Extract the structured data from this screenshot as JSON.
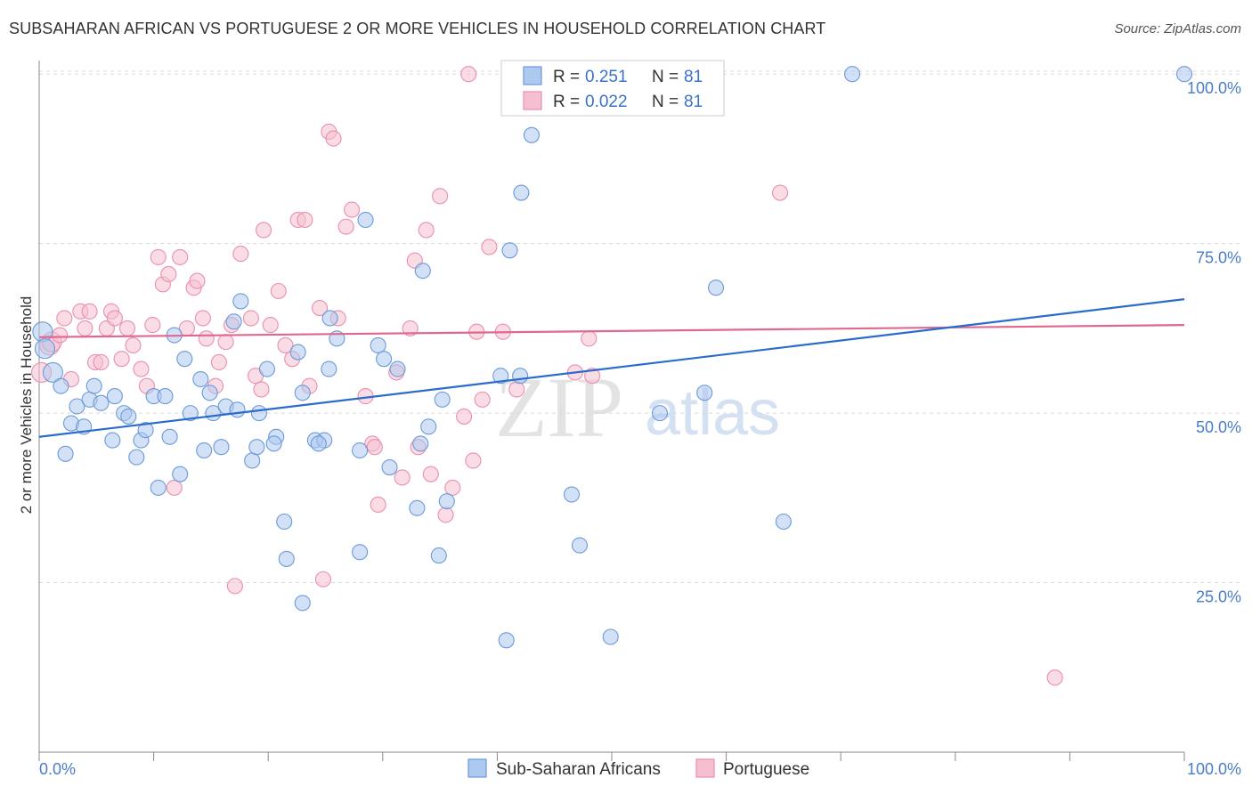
{
  "title": "SUBSAHARAN AFRICAN VS PORTUGUESE 2 OR MORE VEHICLES IN HOUSEHOLD CORRELATION CHART",
  "source": "Source: ZipAtlas.com",
  "watermark": {
    "zip": "ZIP",
    "atlas": "atlas"
  },
  "colors": {
    "blue_fill": "#aec9ef",
    "blue_stroke": "#6b9ad8",
    "blue_line": "#2a6ccc",
    "pink_fill": "#f6bfd0",
    "pink_stroke": "#e98fae",
    "pink_line": "#e0688f",
    "tick_text": "#4a7cc9",
    "grid": "#d9d9d9"
  },
  "legend": {
    "rows": [
      {
        "r_label": "R =",
        "r_value": "0.251",
        "n_label": "N =",
        "n_value": "81"
      },
      {
        "r_label": "R =",
        "r_value": "0.022",
        "n_label": "N =",
        "n_value": "81"
      }
    ]
  },
  "chart_data": {
    "type": "scatter",
    "title": "SUBSAHARAN AFRICAN VS PORTUGUESE 2 OR MORE VEHICLES IN HOUSEHOLD CORRELATION CHART",
    "xlabel": "",
    "ylabel": "2 or more Vehicles in Household",
    "xlim": [
      0,
      100
    ],
    "ylim": [
      0,
      102
    ],
    "x_tick_labels": [
      "0.0%",
      "100.0%"
    ],
    "y_ticks": [
      25,
      50,
      75,
      100
    ],
    "y_tick_labels": [
      "25.0%",
      "50.0%",
      "75.0%",
      "100.0%"
    ],
    "grid": true,
    "legend_position": "top-center",
    "series": [
      {
        "name": "Sub-Saharan Africans",
        "color": "#aec9ef",
        "trend": {
          "x": [
            0,
            100
          ],
          "y": [
            46.5,
            66.8
          ]
        },
        "points": [
          [
            0.3,
            62.0
          ],
          [
            0.5,
            59.5
          ],
          [
            1.2,
            56.0
          ],
          [
            1.9,
            54.0
          ],
          [
            2.3,
            44.0
          ],
          [
            2.8,
            48.5
          ],
          [
            3.3,
            51.0
          ],
          [
            3.9,
            48.0
          ],
          [
            4.4,
            52.0
          ],
          [
            4.8,
            54.0
          ],
          [
            5.4,
            51.5
          ],
          [
            6.4,
            46.0
          ],
          [
            6.6,
            52.5
          ],
          [
            7.4,
            50.0
          ],
          [
            7.8,
            49.5
          ],
          [
            8.5,
            43.5
          ],
          [
            8.9,
            46.0
          ],
          [
            9.3,
            47.5
          ],
          [
            10.0,
            52.5
          ],
          [
            10.4,
            39.0
          ],
          [
            11.0,
            52.5
          ],
          [
            11.4,
            46.5
          ],
          [
            11.8,
            61.5
          ],
          [
            12.3,
            41.0
          ],
          [
            12.7,
            58.0
          ],
          [
            13.2,
            50.0
          ],
          [
            14.1,
            55.0
          ],
          [
            14.4,
            44.5
          ],
          [
            14.9,
            53.0
          ],
          [
            15.2,
            50.0
          ],
          [
            15.9,
            45.0
          ],
          [
            16.3,
            51.0
          ],
          [
            17.3,
            50.5
          ],
          [
            17.0,
            63.5
          ],
          [
            17.6,
            66.5
          ],
          [
            18.6,
            43.0
          ],
          [
            19.0,
            45.0
          ],
          [
            19.2,
            50.0
          ],
          [
            19.9,
            56.5
          ],
          [
            20.7,
            46.5
          ],
          [
            20.5,
            45.5
          ],
          [
            21.4,
            34.0
          ],
          [
            21.6,
            28.5
          ],
          [
            22.6,
            59.0
          ],
          [
            23.0,
            53.0
          ],
          [
            23.0,
            22.0
          ],
          [
            24.1,
            46.0
          ],
          [
            24.9,
            46.0
          ],
          [
            24.4,
            45.5
          ],
          [
            25.3,
            56.5
          ],
          [
            25.4,
            64.0
          ],
          [
            26.0,
            61.0
          ],
          [
            28.0,
            44.5
          ],
          [
            28.0,
            29.5
          ],
          [
            28.5,
            78.5
          ],
          [
            29.6,
            60.0
          ],
          [
            30.1,
            58.0
          ],
          [
            30.6,
            42.0
          ],
          [
            31.3,
            56.5
          ],
          [
            33.0,
            36.0
          ],
          [
            33.3,
            45.5
          ],
          [
            33.5,
            71.0
          ],
          [
            34.0,
            48.0
          ],
          [
            34.9,
            29.0
          ],
          [
            35.2,
            52.0
          ],
          [
            35.6,
            37.0
          ],
          [
            40.3,
            55.5
          ],
          [
            40.8,
            16.5
          ],
          [
            41.1,
            74.0
          ],
          [
            42.1,
            82.5
          ],
          [
            43.0,
            91.0
          ],
          [
            46.5,
            38.0
          ],
          [
            47.2,
            30.5
          ],
          [
            49.9,
            17.0
          ],
          [
            54.2,
            50.0
          ],
          [
            58.1,
            53.0
          ],
          [
            59.1,
            68.5
          ],
          [
            65.0,
            34.0
          ],
          [
            71.0,
            100.0
          ],
          [
            100.0,
            100.0
          ],
          [
            42.0,
            55.5
          ]
        ]
      },
      {
        "name": "Portuguese",
        "color": "#f6bfd0",
        "trend": {
          "x": [
            0,
            100
          ],
          "y": [
            61.2,
            63.0
          ]
        },
        "points": [
          [
            0.2,
            56.0
          ],
          [
            0.9,
            60.0
          ],
          [
            1.1,
            60.5
          ],
          [
            1.8,
            61.5
          ],
          [
            2.2,
            64.0
          ],
          [
            2.8,
            55.0
          ],
          [
            3.6,
            65.0
          ],
          [
            4.0,
            62.5
          ],
          [
            4.4,
            65.0
          ],
          [
            4.9,
            57.5
          ],
          [
            5.4,
            57.5
          ],
          [
            5.9,
            62.5
          ],
          [
            6.3,
            65.0
          ],
          [
            6.6,
            64.0
          ],
          [
            7.2,
            58.0
          ],
          [
            7.7,
            62.5
          ],
          [
            8.2,
            60.0
          ],
          [
            8.9,
            56.5
          ],
          [
            9.4,
            54.0
          ],
          [
            9.9,
            63.0
          ],
          [
            10.4,
            73.0
          ],
          [
            10.8,
            69.0
          ],
          [
            11.3,
            70.5
          ],
          [
            11.8,
            39.0
          ],
          [
            12.3,
            73.0
          ],
          [
            12.9,
            62.5
          ],
          [
            13.5,
            68.5
          ],
          [
            13.8,
            69.5
          ],
          [
            14.3,
            64.0
          ],
          [
            14.6,
            61.0
          ],
          [
            15.4,
            54.0
          ],
          [
            15.7,
            57.5
          ],
          [
            16.3,
            60.5
          ],
          [
            16.8,
            63.0
          ],
          [
            17.1,
            24.5
          ],
          [
            17.6,
            73.5
          ],
          [
            18.5,
            64.0
          ],
          [
            18.9,
            55.5
          ],
          [
            19.4,
            53.5
          ],
          [
            19.6,
            77.0
          ],
          [
            20.2,
            63.0
          ],
          [
            20.9,
            68.0
          ],
          [
            21.5,
            60.0
          ],
          [
            22.1,
            58.0
          ],
          [
            22.6,
            78.5
          ],
          [
            23.2,
            78.5
          ],
          [
            23.6,
            54.0
          ],
          [
            24.5,
            65.5
          ],
          [
            24.8,
            25.5
          ],
          [
            25.3,
            91.5
          ],
          [
            25.7,
            90.5
          ],
          [
            26.1,
            64.0
          ],
          [
            26.8,
            77.5
          ],
          [
            27.3,
            80.0
          ],
          [
            28.5,
            52.5
          ],
          [
            29.1,
            45.5
          ],
          [
            29.3,
            45.0
          ],
          [
            29.6,
            36.5
          ],
          [
            31.2,
            56.0
          ],
          [
            31.7,
            40.5
          ],
          [
            32.4,
            62.5
          ],
          [
            32.8,
            72.5
          ],
          [
            33.1,
            45.0
          ],
          [
            33.8,
            77.0
          ],
          [
            34.2,
            41.0
          ],
          [
            35.0,
            82.0
          ],
          [
            35.5,
            35.0
          ],
          [
            36.1,
            39.0
          ],
          [
            37.1,
            49.5
          ],
          [
            37.9,
            43.0
          ],
          [
            38.2,
            62.0
          ],
          [
            38.7,
            52.0
          ],
          [
            39.3,
            74.5
          ],
          [
            40.5,
            62.0
          ],
          [
            41.7,
            53.5
          ],
          [
            46.8,
            56.0
          ],
          [
            48.3,
            55.5
          ],
          [
            48.0,
            61.0
          ],
          [
            64.7,
            82.5
          ],
          [
            88.7,
            11.0
          ],
          [
            37.5,
            100.0
          ]
        ]
      }
    ]
  }
}
